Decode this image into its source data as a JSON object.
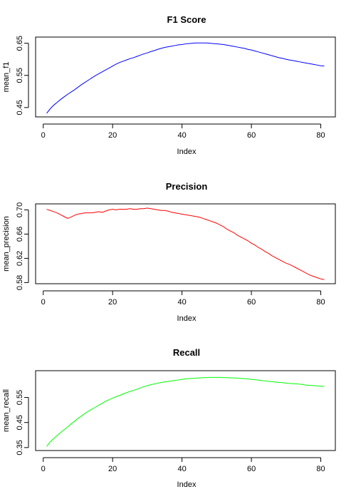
{
  "chart_data": [
    {
      "type": "line",
      "title": "F1 Score",
      "xlabel": "Index",
      "ylabel": "mean_f1",
      "color": "#0000ff",
      "xlim": [
        1,
        81
      ],
      "ylim": [
        0.43,
        0.66
      ],
      "xticks": [
        0,
        20,
        40,
        60,
        80
      ],
      "yticks": [
        0.45,
        0.55,
        0.65
      ],
      "ytick_labels": [
        "0.45",
        "0.55",
        "0.65"
      ],
      "x": [
        1,
        2,
        3,
        4,
        5,
        6,
        7,
        8,
        9,
        10,
        11,
        12,
        13,
        14,
        15,
        16,
        17,
        18,
        19,
        20,
        21,
        22,
        23,
        24,
        25,
        26,
        27,
        28,
        29,
        30,
        31,
        32,
        33,
        34,
        35,
        36,
        37,
        38,
        39,
        40,
        41,
        42,
        43,
        44,
        45,
        46,
        47,
        48,
        49,
        50,
        51,
        52,
        53,
        54,
        55,
        56,
        57,
        58,
        59,
        60,
        61,
        62,
        63,
        64,
        65,
        66,
        67,
        68,
        69,
        70,
        71,
        72,
        73,
        74,
        75,
        76,
        77,
        78,
        79,
        80,
        81
      ],
      "y": [
        0.432,
        0.446,
        0.457,
        0.466,
        0.475,
        0.483,
        0.491,
        0.498,
        0.505,
        0.513,
        0.521,
        0.528,
        0.535,
        0.542,
        0.549,
        0.555,
        0.561,
        0.567,
        0.573,
        0.579,
        0.585,
        0.59,
        0.594,
        0.598,
        0.602,
        0.605,
        0.609,
        0.613,
        0.617,
        0.62,
        0.624,
        0.627,
        0.631,
        0.634,
        0.637,
        0.639,
        0.641,
        0.643,
        0.645,
        0.646,
        0.648,
        0.649,
        0.65,
        0.651,
        0.651,
        0.651,
        0.651,
        0.65,
        0.649,
        0.648,
        0.647,
        0.646,
        0.644,
        0.642,
        0.64,
        0.638,
        0.636,
        0.634,
        0.631,
        0.629,
        0.626,
        0.623,
        0.62,
        0.617,
        0.614,
        0.611,
        0.608,
        0.605,
        0.603,
        0.6,
        0.598,
        0.596,
        0.594,
        0.592,
        0.59,
        0.588,
        0.586,
        0.584,
        0.582,
        0.58,
        0.579
      ]
    },
    {
      "type": "line",
      "title": "Precision",
      "xlabel": "Index",
      "ylabel": "mean_precision",
      "color": "#ff0000",
      "xlim": [
        1,
        81
      ],
      "ylim": [
        0.583,
        0.705
      ],
      "xticks": [
        0,
        20,
        40,
        60,
        80
      ],
      "yticks": [
        0.58,
        0.62,
        0.66,
        0.7
      ],
      "ytick_labels": [
        "0.58",
        "0.62",
        "0.66",
        "0.70"
      ],
      "x": [
        1,
        2,
        3,
        4,
        5,
        6,
        7,
        8,
        9,
        10,
        11,
        12,
        13,
        14,
        15,
        16,
        17,
        18,
        19,
        20,
        21,
        22,
        23,
        24,
        25,
        26,
        27,
        28,
        29,
        30,
        31,
        32,
        33,
        34,
        35,
        36,
        37,
        38,
        39,
        40,
        41,
        42,
        43,
        44,
        45,
        46,
        47,
        48,
        49,
        50,
        51,
        52,
        53,
        54,
        55,
        56,
        57,
        58,
        59,
        60,
        61,
        62,
        63,
        64,
        65,
        66,
        67,
        68,
        69,
        70,
        71,
        72,
        73,
        74,
        75,
        76,
        77,
        78,
        79,
        80,
        81
      ],
      "y": [
        0.701,
        0.699,
        0.697,
        0.695,
        0.692,
        0.689,
        0.686,
        0.688,
        0.691,
        0.693,
        0.694,
        0.695,
        0.695,
        0.695,
        0.696,
        0.697,
        0.696,
        0.698,
        0.7,
        0.701,
        0.7,
        0.701,
        0.701,
        0.701,
        0.702,
        0.701,
        0.701,
        0.702,
        0.702,
        0.703,
        0.702,
        0.701,
        0.7,
        0.699,
        0.699,
        0.698,
        0.696,
        0.695,
        0.694,
        0.693,
        0.692,
        0.691,
        0.69,
        0.689,
        0.688,
        0.686,
        0.684,
        0.682,
        0.68,
        0.678,
        0.675,
        0.672,
        0.668,
        0.665,
        0.662,
        0.658,
        0.655,
        0.652,
        0.649,
        0.645,
        0.642,
        0.638,
        0.635,
        0.631,
        0.628,
        0.624,
        0.621,
        0.618,
        0.615,
        0.612,
        0.61,
        0.607,
        0.604,
        0.601,
        0.598,
        0.595,
        0.592,
        0.59,
        0.588,
        0.586,
        0.585
      ]
    },
    {
      "type": "line",
      "title": "Recall",
      "xlabel": "Index",
      "ylabel": "mean_recall",
      "color": "#00ff00",
      "xlim": [
        1,
        81
      ],
      "ylim": [
        0.35,
        0.645
      ],
      "xticks": [
        0,
        20,
        40,
        60,
        80
      ],
      "yticks": [
        0.35,
        0.45,
        0.55
      ],
      "ytick_labels": [
        "0.35",
        "0.45",
        "0.55"
      ],
      "x": [
        1,
        2,
        3,
        4,
        5,
        6,
        7,
        8,
        9,
        10,
        11,
        12,
        13,
        14,
        15,
        16,
        17,
        18,
        19,
        20,
        21,
        22,
        23,
        24,
        25,
        26,
        27,
        28,
        29,
        30,
        31,
        32,
        33,
        34,
        35,
        36,
        37,
        38,
        39,
        40,
        41,
        42,
        43,
        44,
        45,
        46,
        47,
        48,
        49,
        50,
        51,
        52,
        53,
        54,
        55,
        56,
        57,
        58,
        59,
        60,
        61,
        62,
        63,
        64,
        65,
        66,
        67,
        68,
        69,
        70,
        71,
        72,
        73,
        74,
        75,
        76,
        77,
        78,
        79,
        80,
        81
      ],
      "y": [
        0.355,
        0.373,
        0.386,
        0.398,
        0.41,
        0.421,
        0.432,
        0.444,
        0.455,
        0.466,
        0.476,
        0.486,
        0.495,
        0.503,
        0.511,
        0.519,
        0.527,
        0.535,
        0.541,
        0.547,
        0.553,
        0.558,
        0.564,
        0.569,
        0.574,
        0.578,
        0.583,
        0.588,
        0.593,
        0.597,
        0.601,
        0.604,
        0.607,
        0.61,
        0.612,
        0.614,
        0.616,
        0.618,
        0.62,
        0.622,
        0.624,
        0.625,
        0.626,
        0.627,
        0.628,
        0.629,
        0.629,
        0.63,
        0.63,
        0.63,
        0.63,
        0.629,
        0.629,
        0.628,
        0.628,
        0.627,
        0.626,
        0.625,
        0.624,
        0.622,
        0.621,
        0.619,
        0.617,
        0.616,
        0.614,
        0.613,
        0.611,
        0.61,
        0.609,
        0.607,
        0.606,
        0.605,
        0.604,
        0.603,
        0.601,
        0.599,
        0.598,
        0.597,
        0.596,
        0.595,
        0.594
      ]
    }
  ]
}
